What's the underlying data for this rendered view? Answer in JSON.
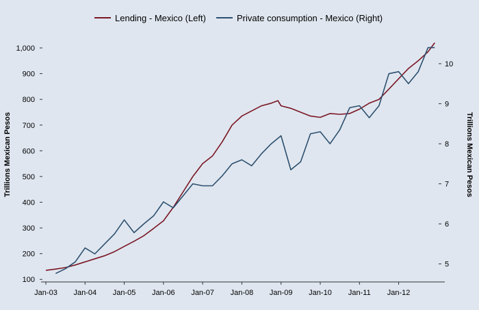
{
  "chart_data": {
    "type": "line",
    "title": "",
    "legend_position": "top",
    "grid": false,
    "xlabel": "",
    "x_tick_labels": [
      "Jan-03",
      "Jan-04",
      "Jan-05",
      "Jan-06",
      "Jan-07",
      "Jan-08",
      "Jan-09",
      "Jan-10",
      "Jan-11",
      "Jan-12"
    ],
    "x_range": [
      2003.0,
      2012.95
    ],
    "axes": {
      "left": {
        "label": "Trillions Mexican Pesos",
        "ylim": [
          90,
          1040
        ],
        "ticks": [
          100,
          200,
          300,
          400,
          500,
          600,
          700,
          800,
          900,
          1000
        ],
        "tick_labels": [
          "100",
          "200",
          "300",
          "400",
          "500",
          "600",
          "700",
          "800",
          "900",
          "1,000"
        ]
      },
      "right": {
        "label": "Trillions Mexican Pesos",
        "ylim": [
          4.55,
          10.65
        ],
        "ticks": [
          5,
          6,
          7,
          8,
          9,
          10
        ],
        "tick_labels": [
          "5",
          "6",
          "7",
          "8",
          "9",
          "10"
        ]
      }
    },
    "series": [
      {
        "name": "Lending - Mexico  (Left)",
        "axis": "left",
        "color": "#7a1523",
        "x": [
          2003.0,
          2003.25,
          2003.5,
          2003.75,
          2004.0,
          2004.25,
          2004.5,
          2004.75,
          2005.0,
          2005.25,
          2005.5,
          2005.75,
          2006.0,
          2006.25,
          2006.5,
          2006.75,
          2007.0,
          2007.25,
          2007.5,
          2007.75,
          2008.0,
          2008.25,
          2008.5,
          2008.75,
          2008.92,
          2009.0,
          2009.25,
          2009.5,
          2009.75,
          2010.0,
          2010.25,
          2010.5,
          2010.75,
          2011.0,
          2011.25,
          2011.5,
          2011.75,
          2012.0,
          2012.25,
          2012.5,
          2012.75,
          2012.92
        ],
        "y": [
          135,
          140,
          146,
          156,
          168,
          180,
          192,
          208,
          228,
          248,
          270,
          298,
          328,
          380,
          440,
          500,
          550,
          580,
          635,
          700,
          735,
          755,
          775,
          785,
          795,
          775,
          765,
          750,
          735,
          730,
          745,
          742,
          745,
          762,
          785,
          800,
          840,
          880,
          920,
          950,
          985,
          1020
        ]
      },
      {
        "name": "Private consumption - Mexico  (Right)",
        "axis": "right",
        "color": "#2c4f6e",
        "x": [
          2003.25,
          2003.5,
          2003.75,
          2004.0,
          2004.25,
          2004.5,
          2004.75,
          2005.0,
          2005.25,
          2005.5,
          2005.75,
          2006.0,
          2006.25,
          2006.5,
          2006.75,
          2007.0,
          2007.25,
          2007.5,
          2007.75,
          2008.0,
          2008.25,
          2008.5,
          2008.75,
          2009.0,
          2009.25,
          2009.5,
          2009.75,
          2010.0,
          2010.25,
          2010.5,
          2010.75,
          2011.0,
          2011.25,
          2011.5,
          2011.75,
          2012.0,
          2012.25,
          2012.5,
          2012.75,
          2012.92
        ],
        "y": [
          4.76,
          4.88,
          5.05,
          5.4,
          5.25,
          5.5,
          5.75,
          6.1,
          5.78,
          6.0,
          6.2,
          6.55,
          6.4,
          6.7,
          7.0,
          6.95,
          6.95,
          7.2,
          7.5,
          7.6,
          7.45,
          7.75,
          8.0,
          8.2,
          7.35,
          7.55,
          8.25,
          8.3,
          8.0,
          8.35,
          8.9,
          8.95,
          8.65,
          8.95,
          9.75,
          9.8,
          9.5,
          9.8,
          10.4,
          10.4
        ]
      }
    ]
  }
}
